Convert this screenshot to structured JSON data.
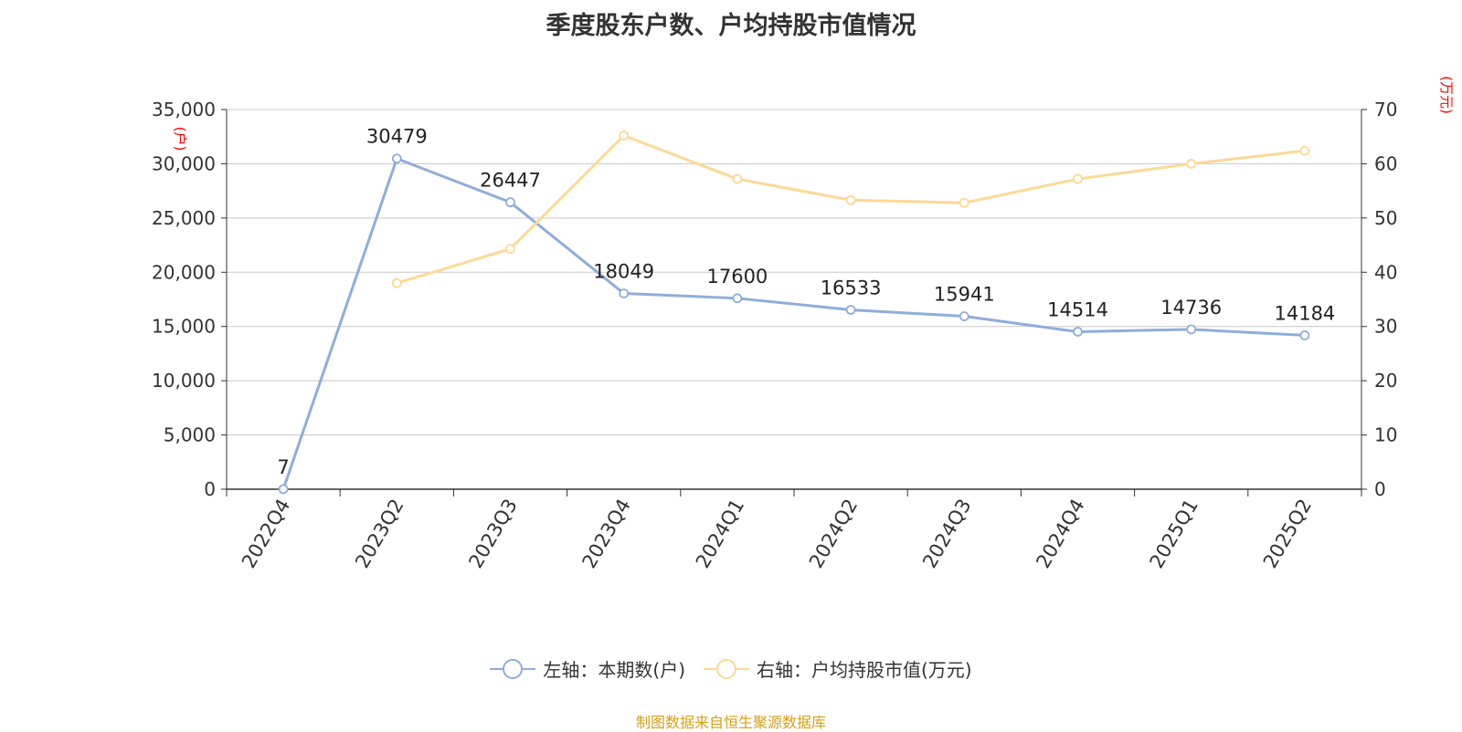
{
  "title": "季度股东户数、户均持股市值情况",
  "source": "制图数据来自恒生聚源数据库",
  "colors": {
    "blue": "#8fadd9",
    "yellow": "#fcd996",
    "axis_unit": "#ff0000",
    "grid": "#c8c8c8",
    "axis": "#333333"
  },
  "chart_data": {
    "type": "line",
    "categories": [
      "2022Q4",
      "2023Q2",
      "2023Q3",
      "2023Q4",
      "2024Q1",
      "2024Q2",
      "2024Q3",
      "2024Q4",
      "2025Q1",
      "2025Q2"
    ],
    "left_axis": {
      "unit": "(户)",
      "ylim": [
        0,
        35000
      ],
      "ticks": [
        "0",
        "5,000",
        "10,000",
        "15,000",
        "20,000",
        "25,000",
        "30,000",
        "35,000"
      ]
    },
    "right_axis": {
      "unit": "(万元)",
      "ylim": [
        0,
        70
      ],
      "ticks": [
        "0",
        "10",
        "20",
        "30",
        "40",
        "50",
        "60",
        "70"
      ]
    },
    "grid": true,
    "legend_position": "bottom-center",
    "series": [
      {
        "name": "左轴：本期数(户)",
        "axis": "left",
        "color": "#8fadd9",
        "values": [
          7,
          30479,
          26447,
          18049,
          17600,
          16533,
          15941,
          14514,
          14736,
          14184
        ],
        "labels": [
          "7",
          "30479",
          "26447",
          "18049",
          "17600",
          "16533",
          "15941",
          "14514",
          "14736",
          "14184"
        ]
      },
      {
        "name": "右轴：户均持股市值(万元)",
        "axis": "right",
        "color": "#fcd996",
        "values": [
          null,
          38,
          44.3,
          65.2,
          57.2,
          53.3,
          52.8,
          57.2,
          60,
          62.4
        ]
      }
    ]
  }
}
